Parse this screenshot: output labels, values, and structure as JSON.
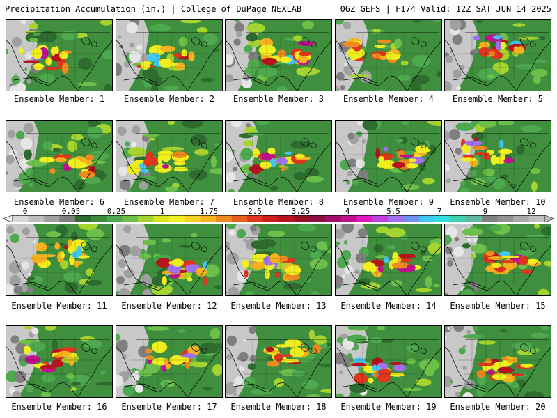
{
  "header": {
    "title": "Precipitation Accumulation (in.) | College of DuPage NEXLAB",
    "run_info": "06Z GEFS | F174 Valid: 12Z SAT JUN 14 2025"
  },
  "panels": [
    {
      "label": "Ensemble Member: 1"
    },
    {
      "label": "Ensemble Member: 2"
    },
    {
      "label": "Ensemble Member: 3"
    },
    {
      "label": "Ensemble Member: 4"
    },
    {
      "label": "Ensemble Member: 5"
    },
    {
      "label": "Ensemble Member: 6"
    },
    {
      "label": "Ensemble Member: 7"
    },
    {
      "label": "Ensemble Member: 8"
    },
    {
      "label": "Ensemble Member: 9"
    },
    {
      "label": "Ensemble Member: 10"
    },
    {
      "label": "Ensemble Member: 11"
    },
    {
      "label": "Ensemble Member: 12"
    },
    {
      "label": "Ensemble Member: 13"
    },
    {
      "label": "Ensemble Member: 14"
    },
    {
      "label": "Ensemble Member: 15"
    },
    {
      "label": "Ensemble Member: 16"
    },
    {
      "label": "Ensemble Member: 17"
    },
    {
      "label": "Ensemble Member: 18"
    },
    {
      "label": "Ensemble Member: 19"
    },
    {
      "label": "Ensemble Member: 20"
    }
  ],
  "colorbar": {
    "tick_labels": [
      "0",
      "0.05",
      "0.25",
      "1",
      "1.75",
      "2.5",
      "3.25",
      "4",
      "5.5",
      "7",
      "9",
      "12"
    ],
    "colors": [
      "#d9d9d9",
      "#bdbdbd",
      "#a0a0a0",
      "#7f7f7f",
      "#2e6b2e",
      "#3d8a3d",
      "#4ea84e",
      "#6cc04a",
      "#a6d42e",
      "#d8e61a",
      "#f0ee1e",
      "#f5d21e",
      "#f5b21e",
      "#f08a1e",
      "#e8601e",
      "#e0361e",
      "#d01e1e",
      "#b8141e",
      "#98101e",
      "#8a1040",
      "#a0106a",
      "#c01090",
      "#e018c0",
      "#c040e0",
      "#a070f0",
      "#7090f0",
      "#40c8f0",
      "#30e0e0",
      "#40d0b0",
      "#60b8a0",
      "#808080",
      "#909090",
      "#a8a8a8",
      "#c0c0c0"
    ],
    "scale_color": "#000000"
  },
  "colors": {
    "land_base": "#3f8f3f",
    "dry": "#c8c8c8",
    "ocean": "#ffffff",
    "border": "#000000"
  }
}
